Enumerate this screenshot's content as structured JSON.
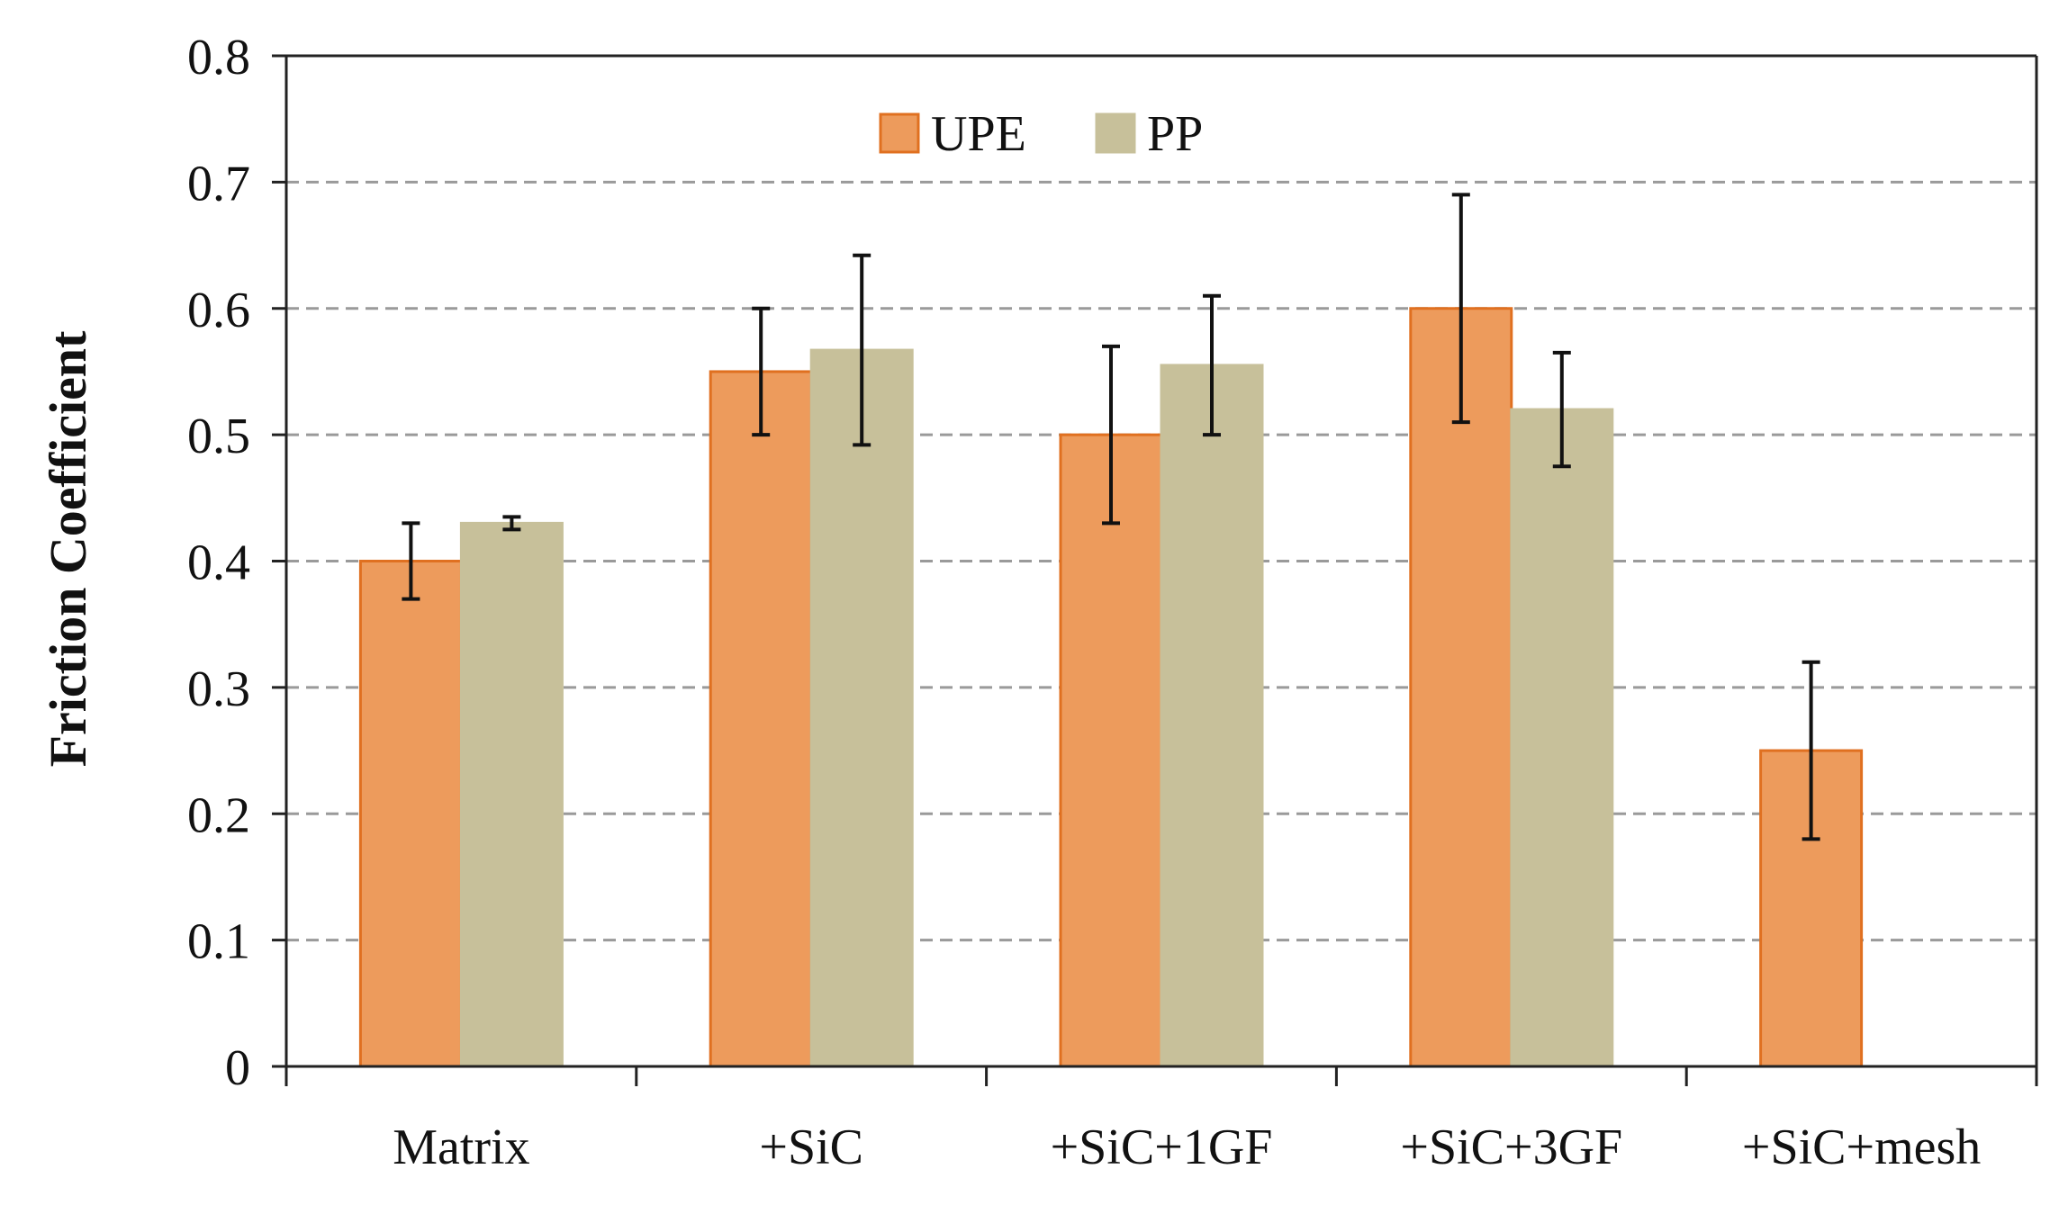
{
  "chart_data": {
    "type": "bar",
    "title": "",
    "xlabel": "",
    "ylabel": "Friction Coefficient",
    "ylim": [
      0,
      0.8
    ],
    "yticks": [
      "0",
      "0.1",
      "0.2",
      "0.3",
      "0.4",
      "0.5",
      "0.6",
      "0.7",
      "0.8"
    ],
    "ytick_values": [
      0,
      0.1,
      0.2,
      0.3,
      0.4,
      0.5,
      0.6,
      0.7,
      0.8
    ],
    "grid": true,
    "legend_position": "top-center",
    "categories": [
      "Matrix",
      "+SiC",
      "+SiC+1GF",
      "+SiC+3GF",
      "+SiC+mesh"
    ],
    "series": [
      {
        "name": "UPE",
        "color": "#ED9B5C",
        "edge_color": "#E07020",
        "values": [
          0.4,
          0.55,
          0.5,
          0.6,
          0.25
        ],
        "errors": [
          0.03,
          0.05,
          0.07,
          0.09,
          0.07
        ]
      },
      {
        "name": "PP",
        "color": "#C7C09A",
        "edge_color": "#C7C09A",
        "values": [
          0.43,
          0.567,
          0.555,
          0.52,
          null
        ],
        "errors": [
          0.005,
          0.075,
          0.055,
          0.045,
          null
        ]
      }
    ]
  }
}
